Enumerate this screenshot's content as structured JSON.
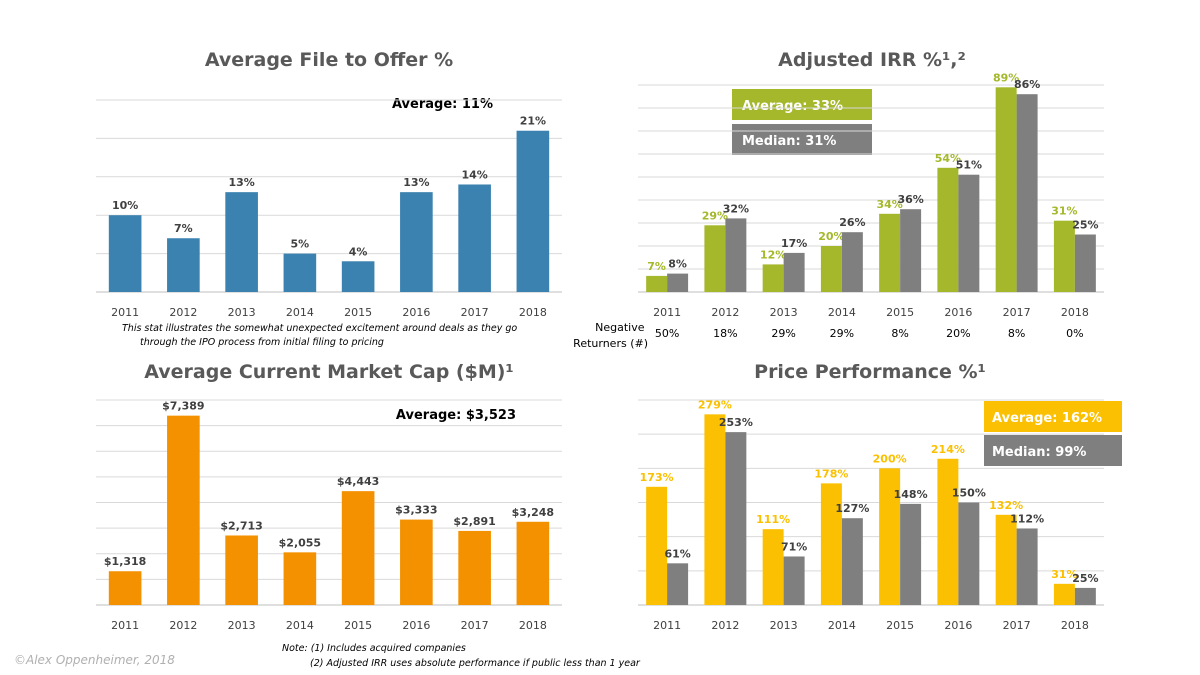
{
  "chart_data": [
    {
      "id": "file_to_offer",
      "type": "bar",
      "title": "Average File to Offer %",
      "categories": [
        "2011",
        "2012",
        "2013",
        "2014",
        "2015",
        "2016",
        "2017",
        "2018"
      ],
      "series": [
        {
          "values": [
            10,
            7,
            13,
            5,
            4,
            13,
            14,
            21
          ],
          "labels": [
            "10%",
            "7%",
            "13%",
            "5%",
            "4%",
            "13%",
            "14%",
            "21%"
          ],
          "color": "#3b82b0"
        }
      ],
      "ylim": [
        0,
        25
      ],
      "grid": true,
      "annotation": "Average: 11%",
      "footnote": "This stat illustrates  the somewhat  unexpected excitement  around deals as they go through  the IPO process from initial filing to pricing"
    },
    {
      "id": "adjusted_irr",
      "type": "bar",
      "title": "Adjusted IRR %¹,²",
      "categories": [
        "2011",
        "2012",
        "2013",
        "2014",
        "2015",
        "2016",
        "2017",
        "2018"
      ],
      "series": [
        {
          "name": "Average: 33%",
          "values": [
            7,
            29,
            12,
            20,
            34,
            54,
            89,
            31
          ],
          "labels": [
            "7%",
            "29%",
            "12%",
            "20%",
            "34%",
            "54%",
            "89%",
            "31%"
          ],
          "color": "#a5b82b"
        },
        {
          "name": "Median: 31%",
          "values": [
            8,
            32,
            17,
            26,
            36,
            51,
            86,
            25
          ],
          "labels": [
            "8%",
            "32%",
            "17%",
            "26%",
            "36%",
            "51%",
            "86%",
            "25%"
          ],
          "color": "#7f7f7f"
        }
      ],
      "ylim": [
        0,
        90
      ],
      "grid": true,
      "extra_row_label": "Negative Returners (#)",
      "extra_row": [
        "50%",
        "18%",
        "29%",
        "29%",
        "8%",
        "20%",
        "8%",
        "0%"
      ]
    },
    {
      "id": "market_cap",
      "type": "bar",
      "title": "Average Current Market Cap ($M)¹",
      "categories": [
        "2011",
        "2012",
        "2013",
        "2014",
        "2015",
        "2016",
        "2017",
        "2018"
      ],
      "series": [
        {
          "values": [
            1318,
            7389,
            2713,
            2055,
            4443,
            3333,
            2891,
            3248
          ],
          "labels": [
            "$1,318",
            "$7,389",
            "$2,713",
            "$2,055",
            "$4,443",
            "$3,333",
            "$2,891",
            "$3,248"
          ],
          "color": "#f49100"
        }
      ],
      "ylim": [
        0,
        8000
      ],
      "grid": true,
      "annotation": "Average: $3,523"
    },
    {
      "id": "price_performance",
      "type": "bar",
      "title": "Price Performance %¹",
      "categories": [
        "2011",
        "2012",
        "2013",
        "2014",
        "2015",
        "2016",
        "2017",
        "2018"
      ],
      "series": [
        {
          "name": "Average: 162%",
          "values": [
            173,
            279,
            111,
            178,
            200,
            214,
            132,
            31
          ],
          "labels": [
            "173%",
            "279%",
            "111%",
            "178%",
            "200%",
            "214%",
            "132%",
            "31%"
          ],
          "color": "#fbc002"
        },
        {
          "name": "Median: 99%",
          "values": [
            61,
            253,
            71,
            127,
            148,
            150,
            112,
            25
          ],
          "labels": [
            "61%",
            "253%",
            "71%",
            "127%",
            "148%",
            "150%",
            "112%",
            "25%"
          ],
          "color": "#7f7f7f"
        }
      ],
      "ylim": [
        0,
        300
      ],
      "grid": true
    }
  ],
  "notes": {
    "line1": "Note: (1) Includes acquired companies",
    "line2": "(2) Adjusted IRR uses absolute performance if public less than 1 year"
  },
  "copyright": "©Alex Oppenheimer, 2018"
}
